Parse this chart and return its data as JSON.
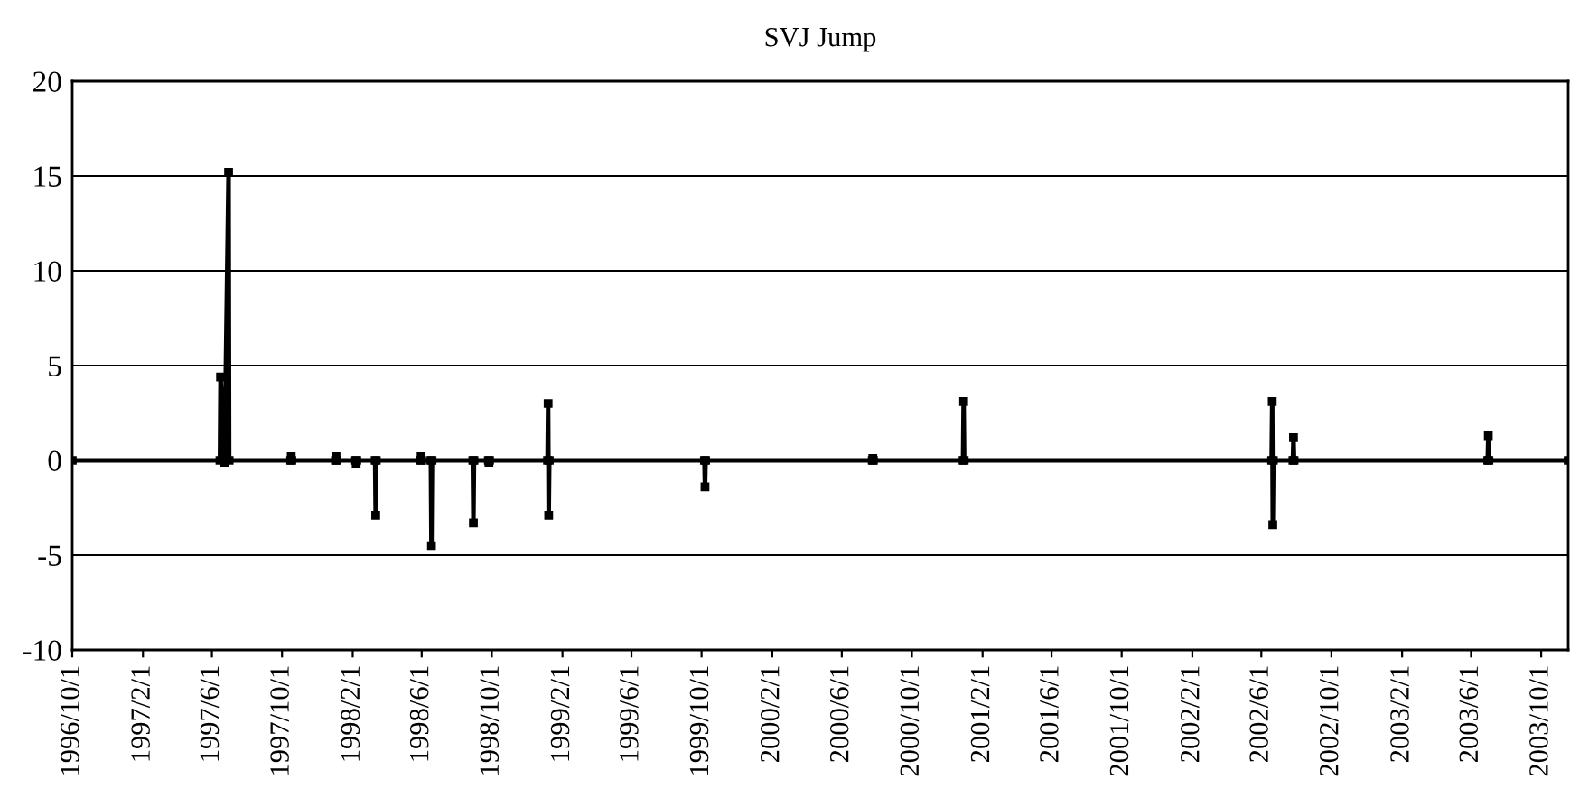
{
  "chart_data": {
    "type": "line",
    "title": "SVJ Jump",
    "x": [
      "1996-10-01",
      "1997-06-15",
      "1997-06-16",
      "1997-06-23",
      "1997-06-30",
      "1997-07-01",
      "1997-10-16",
      "1997-10-17",
      "1997-10-18",
      "1998-01-02",
      "1998-01-03",
      "1998-01-04",
      "1998-02-06",
      "1998-02-07",
      "1998-02-08",
      "1998-03-12",
      "1998-03-13",
      "1998-03-14",
      "1998-05-30",
      "1998-05-31",
      "1998-06-01",
      "1998-06-17",
      "1998-06-18",
      "1998-06-19",
      "1998-08-29",
      "1998-08-30",
      "1998-08-31",
      "1998-09-25",
      "1998-09-26",
      "1998-09-27",
      "1999-01-06",
      "1999-01-07",
      "1999-01-08",
      "1999-01-09",
      "1999-10-06",
      "1999-10-07",
      "1999-10-08",
      "2000-07-24",
      "2000-07-25",
      "2000-07-26",
      "2000-12-29",
      "2000-12-30",
      "2000-12-31",
      "2002-06-19",
      "2002-06-20",
      "2002-06-21",
      "2002-06-22",
      "2002-07-26",
      "2002-07-27",
      "2002-07-28",
      "2003-06-30",
      "2003-07-01",
      "2003-07-02",
      "2003-11-17"
    ],
    "series": [
      {
        "color": "#000000",
        "values": [
          0,
          0,
          4.4,
          -0.1,
          15.2,
          0,
          0,
          0.2,
          0,
          0,
          0.2,
          0,
          0,
          -0.2,
          0,
          0,
          -2.9,
          0,
          0,
          0.2,
          0,
          0,
          -4.5,
          0,
          0,
          -3.3,
          0,
          0,
          -0.1,
          0,
          0,
          3.0,
          -2.9,
          0,
          0,
          -1.4,
          0,
          0,
          0.1,
          0,
          0,
          3.1,
          0,
          0,
          3.1,
          -3.4,
          0,
          0,
          1.2,
          0,
          0,
          1.3,
          0,
          0
        ]
      }
    ],
    "xlim": [
      "1996-10-01",
      "2003-11-17"
    ],
    "xticks": [
      {
        "value": "1996-10-01",
        "label": "1996/10/1"
      },
      {
        "value": "1997-02-01",
        "label": "1997/2/1"
      },
      {
        "value": "1997-06-01",
        "label": "1997/6/1"
      },
      {
        "value": "1997-10-01",
        "label": "1997/10/1"
      },
      {
        "value": "1998-02-01",
        "label": "1998/2/1"
      },
      {
        "value": "1998-06-01",
        "label": "1998/6/1"
      },
      {
        "value": "1998-10-01",
        "label": "1998/10/1"
      },
      {
        "value": "1999-02-01",
        "label": "1999/2/1"
      },
      {
        "value": "1999-06-01",
        "label": "1999/6/1"
      },
      {
        "value": "1999-10-01",
        "label": "1999/10/1"
      },
      {
        "value": "2000-02-01",
        "label": "2000/2/1"
      },
      {
        "value": "2000-06-01",
        "label": "2000/6/1"
      },
      {
        "value": "2000-10-01",
        "label": "2000/10/1"
      },
      {
        "value": "2001-02-01",
        "label": "2001/2/1"
      },
      {
        "value": "2001-06-01",
        "label": "2001/6/1"
      },
      {
        "value": "2001-10-01",
        "label": "2001/10/1"
      },
      {
        "value": "2002-02-01",
        "label": "2002/2/1"
      },
      {
        "value": "2002-06-01",
        "label": "2002/6/1"
      },
      {
        "value": "2002-10-01",
        "label": "2002/10/1"
      },
      {
        "value": "2003-02-01",
        "label": "2003/2/1"
      },
      {
        "value": "2003-06-01",
        "label": "2003/6/1"
      },
      {
        "value": "2003-10-01",
        "label": "2003/10/1"
      }
    ],
    "ylim": [
      -10,
      20
    ],
    "yticks": [
      -10,
      -5,
      0,
      5,
      10,
      15,
      20
    ],
    "grid": "y",
    "marker": "square",
    "line_style": "solid"
  }
}
